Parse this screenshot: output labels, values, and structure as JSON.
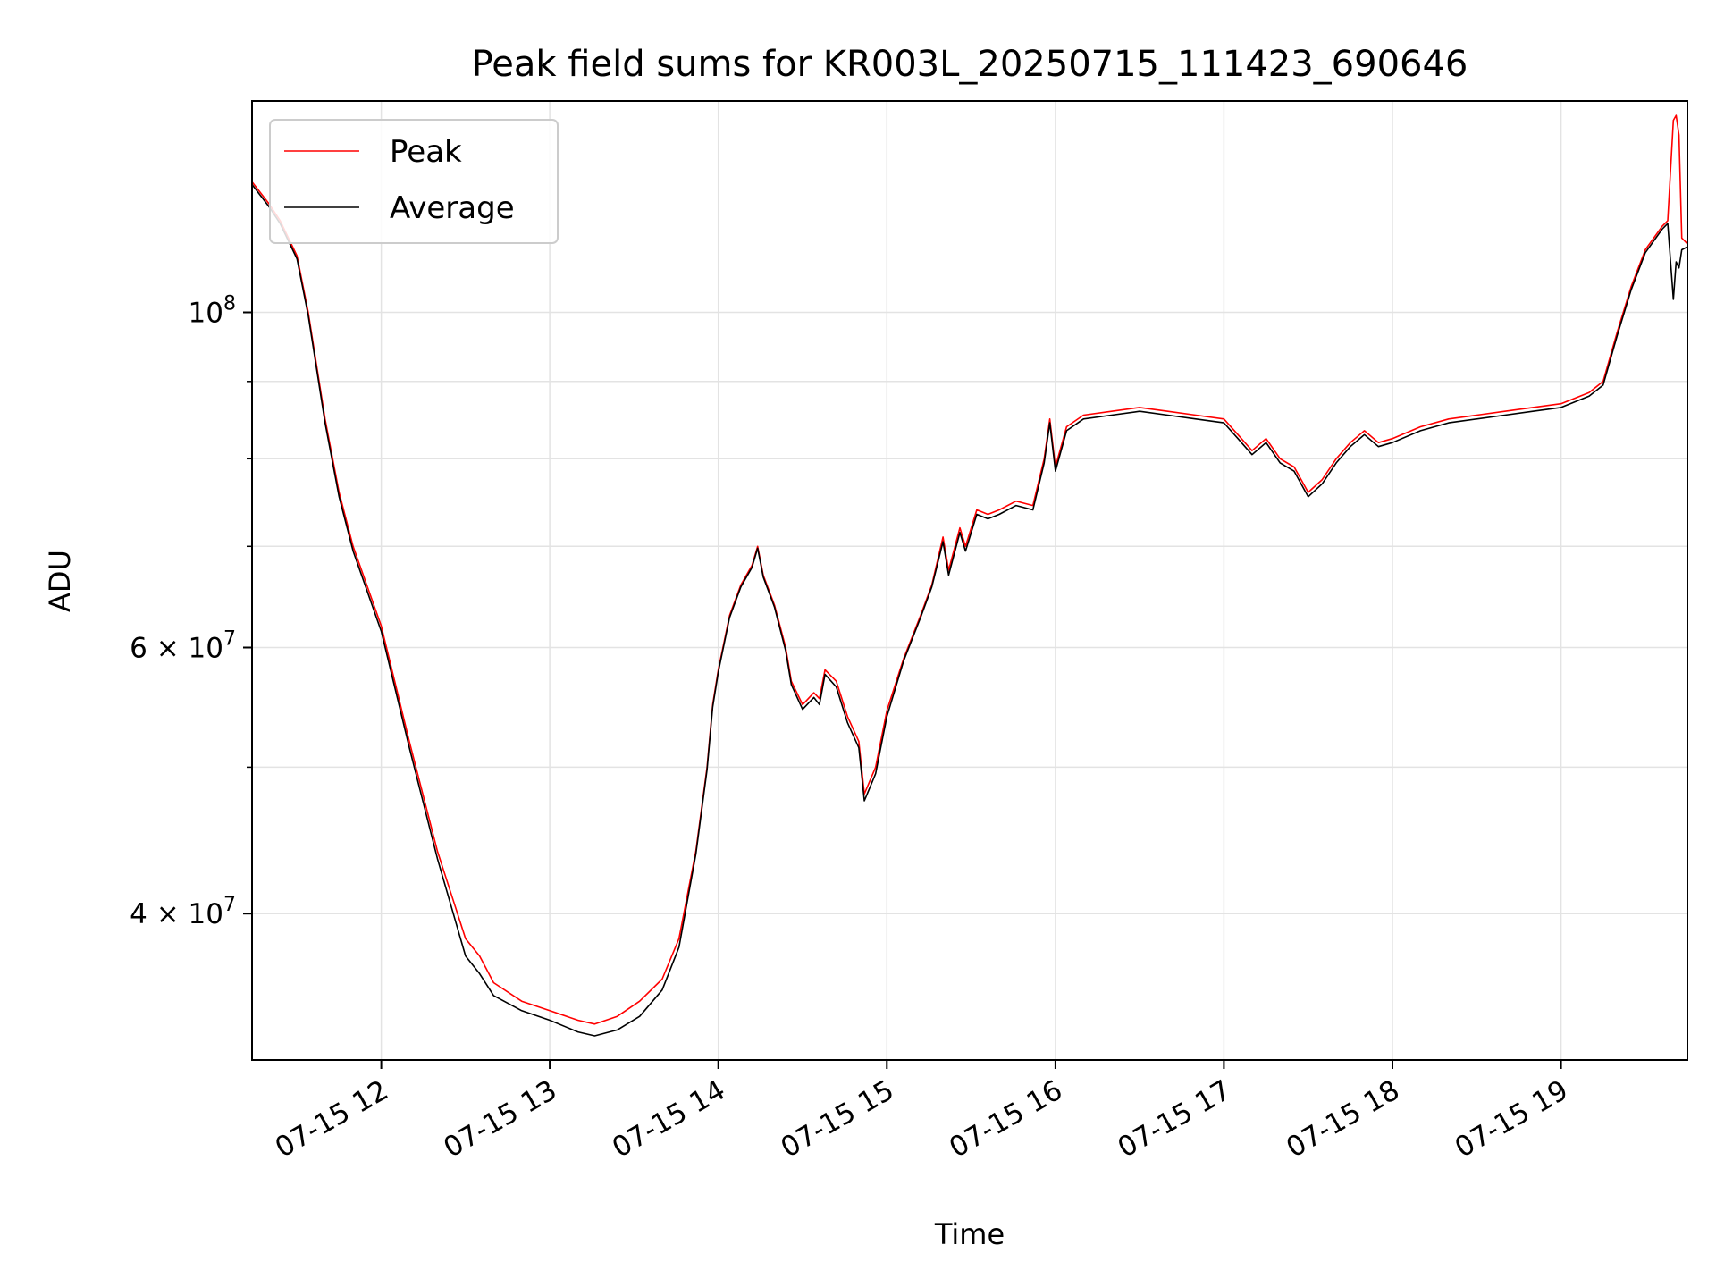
{
  "chart_data": {
    "type": "line",
    "title": "Peak field sums for KR003L_20250715_111423_690646",
    "xlabel": "Time",
    "ylabel": "ADU",
    "yscale": "log",
    "xlim": [
      "2025-07-15 11:14",
      "2025-07-15 19:45"
    ],
    "ylim": [
      32000000,
      138000000
    ],
    "grid": true,
    "legend_position": "top-left",
    "x_ticks": [
      {
        "x": "2025-07-15 12:00",
        "label": "07-15 12"
      },
      {
        "x": "2025-07-15 13:00",
        "label": "07-15 13"
      },
      {
        "x": "2025-07-15 14:00",
        "label": "07-15 14"
      },
      {
        "x": "2025-07-15 15:00",
        "label": "07-15 15"
      },
      {
        "x": "2025-07-15 16:00",
        "label": "07-15 16"
      },
      {
        "x": "2025-07-15 17:00",
        "label": "07-15 17"
      },
      {
        "x": "2025-07-15 18:00",
        "label": "07-15 18"
      },
      {
        "x": "2025-07-15 19:00",
        "label": "07-15 19"
      }
    ],
    "y_ticks": [
      {
        "value": 40000000,
        "label_base": "4 × 10",
        "label_exp": "7"
      },
      {
        "value": 60000000,
        "label_base": "6 × 10",
        "label_exp": "7"
      },
      {
        "value": 100000000,
        "label_base": "10",
        "label_exp": "8"
      }
    ],
    "y_minor_gridlines": [
      50000000,
      70000000,
      80000000,
      90000000
    ],
    "series": [
      {
        "name": "Peak",
        "color": "#ff0000",
        "x": [
          "2025-07-15 11:14",
          "2025-07-15 11:20",
          "2025-07-15 11:24",
          "2025-07-15 11:30",
          "2025-07-15 11:34",
          "2025-07-15 11:40",
          "2025-07-15 11:45",
          "2025-07-15 11:50",
          "2025-07-15 12:00",
          "2025-07-15 12:10",
          "2025-07-15 12:20",
          "2025-07-15 12:30",
          "2025-07-15 12:35",
          "2025-07-15 12:40",
          "2025-07-15 12:50",
          "2025-07-15 13:00",
          "2025-07-15 13:10",
          "2025-07-15 13:16",
          "2025-07-15 13:24",
          "2025-07-15 13:32",
          "2025-07-15 13:40",
          "2025-07-15 13:46",
          "2025-07-15 13:52",
          "2025-07-15 13:56",
          "2025-07-15 13:58",
          "2025-07-15 14:00",
          "2025-07-15 14:04",
          "2025-07-15 14:08",
          "2025-07-15 14:12",
          "2025-07-15 14:14",
          "2025-07-15 14:16",
          "2025-07-15 14:20",
          "2025-07-15 14:24",
          "2025-07-15 14:26",
          "2025-07-15 14:30",
          "2025-07-15 14:34",
          "2025-07-15 14:36",
          "2025-07-15 14:38",
          "2025-07-15 14:42",
          "2025-07-15 14:46",
          "2025-07-15 14:50",
          "2025-07-15 14:52",
          "2025-07-15 14:56",
          "2025-07-15 15:00",
          "2025-07-15 15:06",
          "2025-07-15 15:12",
          "2025-07-15 15:16",
          "2025-07-15 15:20",
          "2025-07-15 15:22",
          "2025-07-15 15:26",
          "2025-07-15 15:28",
          "2025-07-15 15:32",
          "2025-07-15 15:36",
          "2025-07-15 15:40",
          "2025-07-15 15:46",
          "2025-07-15 15:52",
          "2025-07-15 15:56",
          "2025-07-15 15:58",
          "2025-07-15 16:00",
          "2025-07-15 16:04",
          "2025-07-15 16:10",
          "2025-07-15 16:20",
          "2025-07-15 16:30",
          "2025-07-15 16:40",
          "2025-07-15 16:50",
          "2025-07-15 17:00",
          "2025-07-15 17:05",
          "2025-07-15 17:10",
          "2025-07-15 17:15",
          "2025-07-15 17:20",
          "2025-07-15 17:25",
          "2025-07-15 17:30",
          "2025-07-15 17:35",
          "2025-07-15 17:40",
          "2025-07-15 17:45",
          "2025-07-15 17:50",
          "2025-07-15 17:55",
          "2025-07-15 18:00",
          "2025-07-15 18:10",
          "2025-07-15 18:20",
          "2025-07-15 18:30",
          "2025-07-15 18:40",
          "2025-07-15 18:50",
          "2025-07-15 19:00",
          "2025-07-15 19:10",
          "2025-07-15 19:15",
          "2025-07-15 19:20",
          "2025-07-15 19:25",
          "2025-07-15 19:30",
          "2025-07-15 19:36",
          "2025-07-15 19:38",
          "2025-07-15 19:40",
          "2025-07-15 19:41",
          "2025-07-15 19:42",
          "2025-07-15 19:43",
          "2025-07-15 19:45"
        ],
        "values": [
          122000000,
          118000000,
          115000000,
          109000000,
          100000000,
          85000000,
          76000000,
          70000000,
          62000000,
          52000000,
          44000000,
          38500000,
          37500000,
          36000000,
          35000000,
          34500000,
          34000000,
          33800000,
          34200000,
          35000000,
          36200000,
          38500000,
          44000000,
          50000000,
          55000000,
          58000000,
          63000000,
          66000000,
          68000000,
          70000000,
          67000000,
          64000000,
          60000000,
          57000000,
          55000000,
          56000000,
          55500000,
          58000000,
          57000000,
          54000000,
          52000000,
          48000000,
          50000000,
          54500000,
          59000000,
          63000000,
          66000000,
          71000000,
          67500000,
          72000000,
          70000000,
          74000000,
          73500000,
          74000000,
          75000000,
          74500000,
          80000000,
          85000000,
          79000000,
          84000000,
          85500000,
          86000000,
          86500000,
          86000000,
          85500000,
          85000000,
          83000000,
          81000000,
          82500000,
          80000000,
          79000000,
          76000000,
          77500000,
          80000000,
          82000000,
          83500000,
          82000000,
          82500000,
          84000000,
          85000000,
          85500000,
          86000000,
          86500000,
          87000000,
          88500000,
          90000000,
          97000000,
          104000000,
          110000000,
          114000000,
          115000000,
          134000000,
          135000000,
          131000000,
          112000000,
          111000000
        ]
      },
      {
        "name": "Average",
        "color": "#000000",
        "x": [
          "2025-07-15 11:14",
          "2025-07-15 11:20",
          "2025-07-15 11:24",
          "2025-07-15 11:30",
          "2025-07-15 11:34",
          "2025-07-15 11:40",
          "2025-07-15 11:45",
          "2025-07-15 11:50",
          "2025-07-15 12:00",
          "2025-07-15 12:10",
          "2025-07-15 12:20",
          "2025-07-15 12:30",
          "2025-07-15 12:35",
          "2025-07-15 12:40",
          "2025-07-15 12:50",
          "2025-07-15 13:00",
          "2025-07-15 13:10",
          "2025-07-15 13:16",
          "2025-07-15 13:24",
          "2025-07-15 13:32",
          "2025-07-15 13:40",
          "2025-07-15 13:46",
          "2025-07-15 13:52",
          "2025-07-15 13:56",
          "2025-07-15 13:58",
          "2025-07-15 14:00",
          "2025-07-15 14:04",
          "2025-07-15 14:08",
          "2025-07-15 14:12",
          "2025-07-15 14:14",
          "2025-07-15 14:16",
          "2025-07-15 14:20",
          "2025-07-15 14:24",
          "2025-07-15 14:26",
          "2025-07-15 14:30",
          "2025-07-15 14:34",
          "2025-07-15 14:36",
          "2025-07-15 14:38",
          "2025-07-15 14:42",
          "2025-07-15 14:46",
          "2025-07-15 14:50",
          "2025-07-15 14:52",
          "2025-07-15 14:56",
          "2025-07-15 15:00",
          "2025-07-15 15:06",
          "2025-07-15 15:12",
          "2025-07-15 15:16",
          "2025-07-15 15:20",
          "2025-07-15 15:22",
          "2025-07-15 15:26",
          "2025-07-15 15:28",
          "2025-07-15 15:32",
          "2025-07-15 15:36",
          "2025-07-15 15:40",
          "2025-07-15 15:46",
          "2025-07-15 15:52",
          "2025-07-15 15:56",
          "2025-07-15 15:58",
          "2025-07-15 16:00",
          "2025-07-15 16:04",
          "2025-07-15 16:10",
          "2025-07-15 16:20",
          "2025-07-15 16:30",
          "2025-07-15 16:40",
          "2025-07-15 16:50",
          "2025-07-15 17:00",
          "2025-07-15 17:05",
          "2025-07-15 17:10",
          "2025-07-15 17:15",
          "2025-07-15 17:20",
          "2025-07-15 17:25",
          "2025-07-15 17:30",
          "2025-07-15 17:35",
          "2025-07-15 17:40",
          "2025-07-15 17:45",
          "2025-07-15 17:50",
          "2025-07-15 17:55",
          "2025-07-15 18:00",
          "2025-07-15 18:10",
          "2025-07-15 18:20",
          "2025-07-15 18:30",
          "2025-07-15 18:40",
          "2025-07-15 18:50",
          "2025-07-15 19:00",
          "2025-07-15 19:10",
          "2025-07-15 19:15",
          "2025-07-15 19:20",
          "2025-07-15 19:25",
          "2025-07-15 19:30",
          "2025-07-15 19:36",
          "2025-07-15 19:38",
          "2025-07-15 19:40",
          "2025-07-15 19:41",
          "2025-07-15 19:42",
          "2025-07-15 19:43",
          "2025-07-15 19:45"
        ],
        "values": [
          121500000,
          117500000,
          114500000,
          108500000,
          99500000,
          84500000,
          75500000,
          69500000,
          61500000,
          51500000,
          43500000,
          37500000,
          36500000,
          35300000,
          34500000,
          34000000,
          33400000,
          33200000,
          33500000,
          34200000,
          35600000,
          38000000,
          43800000,
          49800000,
          54800000,
          57800000,
          62800000,
          65800000,
          67800000,
          69800000,
          66800000,
          63800000,
          59700000,
          56700000,
          54600000,
          55600000,
          55000000,
          57600000,
          56500000,
          53500000,
          51500000,
          47500000,
          49500000,
          54000000,
          58800000,
          62800000,
          65800000,
          70500000,
          67000000,
          71500000,
          69500000,
          73500000,
          73000000,
          73500000,
          74500000,
          74000000,
          79500000,
          84500000,
          78500000,
          83500000,
          85000000,
          85500000,
          86000000,
          85500000,
          85000000,
          84500000,
          82500000,
          80500000,
          82000000,
          79500000,
          78500000,
          75500000,
          77000000,
          79500000,
          81500000,
          83000000,
          81500000,
          82000000,
          83500000,
          84500000,
          85000000,
          85500000,
          86000000,
          86500000,
          88000000,
          89500000,
          96500000,
          103500000,
          109500000,
          113500000,
          114500000,
          102000000,
          108000000,
          107000000,
          110000000,
          110500000
        ]
      }
    ]
  }
}
